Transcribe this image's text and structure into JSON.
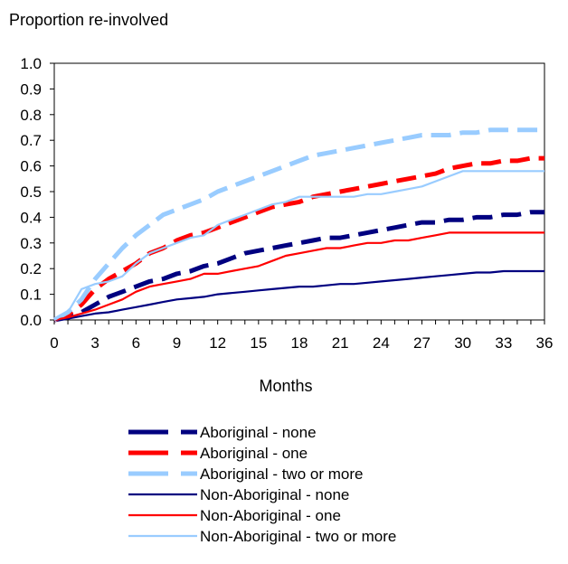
{
  "chart_data": {
    "type": "line",
    "title": "",
    "ylabel": "Proportion re-involved",
    "xlabel": "Months",
    "xlim": [
      0,
      36
    ],
    "ylim": [
      0,
      1.0
    ],
    "x_ticks": [
      "0",
      "3",
      "6",
      "9",
      "12",
      "15",
      "18",
      "21",
      "24",
      "27",
      "30",
      "33",
      "36"
    ],
    "y_ticks": [
      "0.0",
      "0.1",
      "0.2",
      "0.3",
      "0.4",
      "0.5",
      "0.6",
      "0.7",
      "0.8",
      "0.9",
      "1.0"
    ],
    "grid": false,
    "legend_position": "bottom",
    "series": [
      {
        "name": "Aboriginal - none",
        "color": "#000080",
        "style": "dashed",
        "x": [
          0,
          1,
          2,
          3,
          4,
          5,
          6,
          7,
          8,
          9,
          10,
          11,
          12,
          13,
          14,
          15,
          16,
          17,
          18,
          19,
          20,
          21,
          22,
          23,
          24,
          25,
          26,
          27,
          28,
          29,
          30,
          31,
          32,
          33,
          34,
          35,
          36
        ],
        "y": [
          0,
          0.01,
          0.03,
          0.06,
          0.09,
          0.11,
          0.13,
          0.15,
          0.16,
          0.18,
          0.19,
          0.21,
          0.22,
          0.24,
          0.26,
          0.27,
          0.28,
          0.29,
          0.3,
          0.31,
          0.32,
          0.32,
          0.33,
          0.34,
          0.35,
          0.36,
          0.37,
          0.38,
          0.38,
          0.39,
          0.39,
          0.4,
          0.4,
          0.41,
          0.41,
          0.42,
          0.42
        ]
      },
      {
        "name": "Aboriginal - one",
        "color": "#ff0000",
        "style": "dashed",
        "x": [
          0,
          1,
          2,
          3,
          4,
          5,
          6,
          7,
          8,
          9,
          10,
          11,
          12,
          13,
          14,
          15,
          16,
          17,
          18,
          19,
          20,
          21,
          22,
          23,
          24,
          25,
          26,
          27,
          28,
          29,
          30,
          31,
          32,
          33,
          34,
          35,
          36
        ],
        "y": [
          0,
          0.02,
          0.06,
          0.12,
          0.16,
          0.19,
          0.22,
          0.26,
          0.28,
          0.31,
          0.33,
          0.34,
          0.36,
          0.38,
          0.4,
          0.42,
          0.44,
          0.45,
          0.46,
          0.48,
          0.49,
          0.5,
          0.51,
          0.52,
          0.53,
          0.54,
          0.55,
          0.56,
          0.57,
          0.59,
          0.6,
          0.61,
          0.61,
          0.62,
          0.62,
          0.63,
          0.63
        ]
      },
      {
        "name": "Aboriginal - two or more",
        "color": "#99ccff",
        "style": "dashed",
        "x": [
          0,
          1,
          2,
          3,
          4,
          5,
          6,
          7,
          8,
          9,
          10,
          11,
          12,
          13,
          14,
          15,
          16,
          17,
          18,
          19,
          20,
          21,
          22,
          23,
          24,
          25,
          26,
          27,
          28,
          29,
          30,
          31,
          32,
          33,
          34,
          35,
          36
        ],
        "y": [
          0,
          0.03,
          0.08,
          0.16,
          0.22,
          0.28,
          0.33,
          0.37,
          0.41,
          0.43,
          0.45,
          0.47,
          0.5,
          0.52,
          0.54,
          0.56,
          0.58,
          0.6,
          0.62,
          0.64,
          0.65,
          0.66,
          0.67,
          0.68,
          0.69,
          0.7,
          0.71,
          0.72,
          0.72,
          0.72,
          0.73,
          0.73,
          0.74,
          0.74,
          0.74,
          0.74,
          0.74
        ]
      },
      {
        "name": "Non-Aboriginal - none",
        "color": "#000080",
        "style": "solid",
        "x": [
          0,
          1,
          2,
          3,
          4,
          5,
          6,
          7,
          8,
          9,
          10,
          11,
          12,
          13,
          14,
          15,
          16,
          17,
          18,
          19,
          20,
          21,
          22,
          23,
          24,
          25,
          26,
          27,
          28,
          29,
          30,
          31,
          32,
          33,
          34,
          35,
          36
        ],
        "y": [
          0,
          0.005,
          0.015,
          0.025,
          0.03,
          0.04,
          0.05,
          0.06,
          0.07,
          0.08,
          0.085,
          0.09,
          0.1,
          0.105,
          0.11,
          0.115,
          0.12,
          0.125,
          0.13,
          0.13,
          0.135,
          0.14,
          0.14,
          0.145,
          0.15,
          0.155,
          0.16,
          0.165,
          0.17,
          0.175,
          0.18,
          0.185,
          0.185,
          0.19,
          0.19,
          0.19,
          0.19
        ]
      },
      {
        "name": "Non-Aboriginal - one",
        "color": "#ff0000",
        "style": "solid",
        "x": [
          0,
          1,
          2,
          3,
          4,
          5,
          6,
          7,
          8,
          9,
          10,
          11,
          12,
          13,
          14,
          15,
          16,
          17,
          18,
          19,
          20,
          21,
          22,
          23,
          24,
          25,
          26,
          27,
          28,
          29,
          30,
          31,
          32,
          33,
          34,
          35,
          36
        ],
        "y": [
          0,
          0.01,
          0.025,
          0.04,
          0.06,
          0.08,
          0.11,
          0.13,
          0.14,
          0.15,
          0.16,
          0.18,
          0.18,
          0.19,
          0.2,
          0.21,
          0.23,
          0.25,
          0.26,
          0.27,
          0.28,
          0.28,
          0.29,
          0.3,
          0.3,
          0.31,
          0.31,
          0.32,
          0.33,
          0.34,
          0.34,
          0.34,
          0.34,
          0.34,
          0.34,
          0.34,
          0.34
        ]
      },
      {
        "name": "Non-Aboriginal - two or more",
        "color": "#99ccff",
        "style": "solid",
        "x": [
          0,
          1,
          2,
          3,
          4,
          5,
          6,
          7,
          8,
          9,
          10,
          11,
          12,
          13,
          14,
          15,
          16,
          17,
          18,
          19,
          20,
          21,
          22,
          23,
          24,
          25,
          26,
          27,
          28,
          29,
          30,
          31,
          32,
          33,
          34,
          35,
          36
        ],
        "y": [
          0,
          0.03,
          0.12,
          0.14,
          0.15,
          0.17,
          0.22,
          0.26,
          0.28,
          0.3,
          0.32,
          0.33,
          0.37,
          0.39,
          0.41,
          0.43,
          0.45,
          0.46,
          0.48,
          0.48,
          0.48,
          0.48,
          0.48,
          0.49,
          0.49,
          0.5,
          0.51,
          0.52,
          0.54,
          0.56,
          0.58,
          0.58,
          0.58,
          0.58,
          0.58,
          0.58,
          0.58
        ]
      }
    ]
  }
}
